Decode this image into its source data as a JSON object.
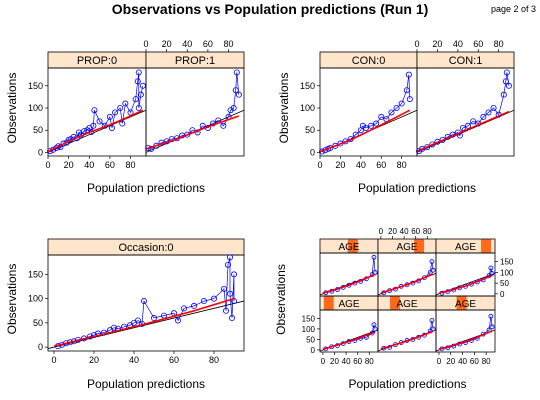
{
  "page": {
    "title": "Observations vs Population predictions (Run 1)",
    "page_label": "page 2 of 3",
    "colors": {
      "strip_fill": "#ffe5cc",
      "strip_bar": "#ff6a1a",
      "observations": "#0000ff",
      "smooth": "#ff0000",
      "identity_line": "#000000"
    }
  },
  "chart_data": [
    {
      "type": "scatter",
      "id": "prop",
      "xlabel": "Population predictions",
      "ylabel": "Observations",
      "xlim": [
        0,
        95
      ],
      "ylim": [
        -8,
        190
      ],
      "x_ticks": [
        "0",
        "20",
        "40",
        "60",
        "80"
      ],
      "y_ticks": [
        "0",
        "50",
        "100",
        "150"
      ],
      "panels": [
        {
          "label": "PROP:0",
          "points": [
            [
              2,
              3
            ],
            [
              5,
              6
            ],
            [
              8,
              10
            ],
            [
              10,
              14
            ],
            [
              12,
              12
            ],
            [
              15,
              20
            ],
            [
              18,
              22
            ],
            [
              20,
              28
            ],
            [
              22,
              30
            ],
            [
              25,
              35
            ],
            [
              28,
              32
            ],
            [
              30,
              45
            ],
            [
              32,
              40
            ],
            [
              35,
              48
            ],
            [
              38,
              50
            ],
            [
              40,
              55
            ],
            [
              42,
              46
            ],
            [
              44,
              60
            ],
            [
              45,
              95
            ],
            [
              50,
              70
            ],
            [
              55,
              60
            ],
            [
              60,
              80
            ],
            [
              62,
              55
            ],
            [
              65,
              90
            ],
            [
              70,
              100
            ],
            [
              72,
              65
            ],
            [
              75,
              110
            ],
            [
              80,
              90
            ],
            [
              85,
              120
            ],
            [
              87,
              160
            ],
            [
              88,
              180
            ],
            [
              88,
              100
            ],
            [
              90,
              130
            ],
            [
              92,
              150
            ]
          ],
          "smooth": [
            [
              0,
              2
            ],
            [
              20,
              25
            ],
            [
              40,
              45
            ],
            [
              60,
              62
            ],
            [
              80,
              82
            ],
            [
              92,
              95
            ]
          ]
        },
        {
          "label": "PROP:1",
          "points": [
            [
              2,
              10
            ],
            [
              5,
              8
            ],
            [
              10,
              15
            ],
            [
              15,
              22
            ],
            [
              20,
              25
            ],
            [
              25,
              30
            ],
            [
              30,
              32
            ],
            [
              35,
              38
            ],
            [
              40,
              40
            ],
            [
              45,
              50
            ],
            [
              50,
              45
            ],
            [
              55,
              60
            ],
            [
              60,
              55
            ],
            [
              65,
              65
            ],
            [
              70,
              72
            ],
            [
              75,
              60
            ],
            [
              80,
              80
            ],
            [
              82,
              95
            ],
            [
              85,
              100
            ],
            [
              87,
              140
            ],
            [
              88,
              180
            ],
            [
              90,
              130
            ]
          ],
          "smooth": [
            [
              0,
              8
            ],
            [
              30,
              30
            ],
            [
              60,
              58
            ],
            [
              90,
              82
            ]
          ]
        }
      ]
    },
    {
      "type": "scatter",
      "id": "con",
      "xlabel": "Population predictions",
      "ylabel": "Observations",
      "xlim": [
        0,
        95
      ],
      "ylim": [
        -8,
        190
      ],
      "x_ticks": [
        "0",
        "20",
        "40",
        "60",
        "80"
      ],
      "y_ticks": [
        "0",
        "50",
        "100",
        "150"
      ],
      "panels": [
        {
          "label": "CON:0",
          "points": [
            [
              2,
              2
            ],
            [
              5,
              5
            ],
            [
              8,
              8
            ],
            [
              10,
              10
            ],
            [
              15,
              15
            ],
            [
              20,
              20
            ],
            [
              25,
              25
            ],
            [
              30,
              30
            ],
            [
              35,
              40
            ],
            [
              40,
              50
            ],
            [
              42,
              60
            ],
            [
              45,
              55
            ],
            [
              50,
              60
            ],
            [
              55,
              65
            ],
            [
              60,
              80
            ],
            [
              65,
              75
            ],
            [
              70,
              90
            ],
            [
              75,
              100
            ],
            [
              80,
              110
            ],
            [
              85,
              140
            ],
            [
              87,
              175
            ],
            [
              88,
              120
            ]
          ],
          "smooth": [
            [
              0,
              2
            ],
            [
              30,
              28
            ],
            [
              60,
              62
            ],
            [
              88,
              95
            ]
          ]
        },
        {
          "label": "CON:1",
          "points": [
            [
              2,
              3
            ],
            [
              5,
              8
            ],
            [
              10,
              12
            ],
            [
              15,
              18
            ],
            [
              20,
              24
            ],
            [
              25,
              28
            ],
            [
              30,
              35
            ],
            [
              35,
              40
            ],
            [
              40,
              45
            ],
            [
              42,
              38
            ],
            [
              45,
              55
            ],
            [
              50,
              60
            ],
            [
              55,
              70
            ],
            [
              60,
              65
            ],
            [
              65,
              80
            ],
            [
              70,
              90
            ],
            [
              75,
              100
            ],
            [
              80,
              85
            ],
            [
              85,
              130
            ],
            [
              87,
              160
            ],
            [
              88,
              180
            ],
            [
              90,
              150
            ]
          ],
          "smooth": [
            [
              0,
              3
            ],
            [
              30,
              32
            ],
            [
              60,
              62
            ],
            [
              90,
              92
            ]
          ]
        }
      ]
    },
    {
      "type": "scatter",
      "id": "occasion",
      "xlabel": "Population predictions",
      "ylabel": "Observations",
      "xlim": [
        -3,
        95
      ],
      "ylim": [
        -8,
        190
      ],
      "x_ticks": [
        "0",
        "20",
        "40",
        "60",
        "80"
      ],
      "y_ticks": [
        "0",
        "50",
        "100",
        "150"
      ],
      "panels": [
        {
          "label": "Occasion:0",
          "points": [
            [
              2,
              2
            ],
            [
              4,
              5
            ],
            [
              6,
              8
            ],
            [
              8,
              10
            ],
            [
              10,
              12
            ],
            [
              12,
              15
            ],
            [
              15,
              18
            ],
            [
              18,
              22
            ],
            [
              20,
              25
            ],
            [
              22,
              28
            ],
            [
              25,
              30
            ],
            [
              28,
              35
            ],
            [
              30,
              40
            ],
            [
              32,
              38
            ],
            [
              35,
              42
            ],
            [
              38,
              45
            ],
            [
              40,
              50
            ],
            [
              42,
              55
            ],
            [
              44,
              48
            ],
            [
              45,
              95
            ],
            [
              50,
              60
            ],
            [
              55,
              65
            ],
            [
              60,
              70
            ],
            [
              62,
              55
            ],
            [
              65,
              80
            ],
            [
              70,
              85
            ],
            [
              75,
              95
            ],
            [
              80,
              100
            ],
            [
              85,
              120
            ],
            [
              86,
              75
            ],
            [
              87,
              170
            ],
            [
              88,
              185
            ],
            [
              88,
              110
            ],
            [
              89,
              60
            ],
            [
              90,
              150
            ],
            [
              90,
              95
            ]
          ],
          "smooth": [
            [
              0,
              2
            ],
            [
              20,
              22
            ],
            [
              45,
              47
            ],
            [
              70,
              75
            ],
            [
              90,
              100
            ]
          ]
        }
      ]
    },
    {
      "type": "scatter",
      "id": "age",
      "xlabel": "Population predictions",
      "ylabel": "Observations",
      "xlim": [
        -5,
        95
      ],
      "ylim": [
        -10,
        190
      ],
      "x_ticks": [
        "0",
        "20",
        "40",
        "60",
        "80"
      ],
      "y_ticks": [
        "0",
        "50",
        "100",
        "150"
      ],
      "panels": [
        {
          "label": "AGE",
          "level": 0.08,
          "points": [
            [
              5,
              5
            ],
            [
              15,
              15
            ],
            [
              25,
              20
            ],
            [
              35,
              30
            ],
            [
              45,
              40
            ],
            [
              55,
              45
            ],
            [
              65,
              55
            ],
            [
              75,
              60
            ],
            [
              85,
              80
            ],
            [
              88,
              120
            ],
            [
              90,
              100
            ]
          ],
          "smooth": [
            [
              0,
              3
            ],
            [
              45,
              40
            ],
            [
              90,
              85
            ]
          ]
        },
        {
          "label": "AGE",
          "level": 0.25,
          "points": [
            [
              5,
              8
            ],
            [
              15,
              12
            ],
            [
              25,
              25
            ],
            [
              35,
              35
            ],
            [
              45,
              45
            ],
            [
              55,
              50
            ],
            [
              65,
              60
            ],
            [
              75,
              70
            ],
            [
              85,
              90
            ],
            [
              88,
              140
            ],
            [
              90,
              100
            ]
          ],
          "smooth": [
            [
              0,
              5
            ],
            [
              45,
              42
            ],
            [
              90,
              88
            ]
          ]
        },
        {
          "label": "AGE",
          "level": 0.42,
          "points": [
            [
              5,
              5
            ],
            [
              15,
              10
            ],
            [
              25,
              18
            ],
            [
              35,
              28
            ],
            [
              45,
              35
            ],
            [
              55,
              45
            ],
            [
              65,
              55
            ],
            [
              75,
              75
            ],
            [
              85,
              95
            ],
            [
              88,
              160
            ],
            [
              90,
              110
            ]
          ],
          "smooth": [
            [
              0,
              4
            ],
            [
              45,
              38
            ],
            [
              90,
              90
            ]
          ]
        },
        {
          "label": "AGE",
          "level": 0.58,
          "points": [
            [
              5,
              5
            ],
            [
              15,
              12
            ],
            [
              25,
              20
            ],
            [
              35,
              30
            ],
            [
              45,
              40
            ],
            [
              55,
              50
            ],
            [
              65,
              58
            ],
            [
              75,
              70
            ],
            [
              85,
              90
            ],
            [
              88,
              170
            ],
            [
              90,
              100
            ]
          ],
          "smooth": [
            [
              0,
              4
            ],
            [
              45,
              40
            ],
            [
              90,
              90
            ]
          ]
        },
        {
          "label": "AGE",
          "level": 0.75,
          "points": [
            [
              5,
              5
            ],
            [
              15,
              15
            ],
            [
              25,
              22
            ],
            [
              35,
              35
            ],
            [
              45,
              42
            ],
            [
              55,
              50
            ],
            [
              65,
              60
            ],
            [
              75,
              75
            ],
            [
              85,
              100
            ],
            [
              88,
              150
            ],
            [
              90,
              110
            ]
          ],
          "smooth": [
            [
              0,
              4
            ],
            [
              45,
              42
            ],
            [
              90,
              92
            ]
          ]
        },
        {
          "label": "AGE",
          "level": 0.92,
          "points": [
            [
              5,
              3
            ],
            [
              15,
              10
            ],
            [
              25,
              18
            ],
            [
              35,
              28
            ],
            [
              45,
              35
            ],
            [
              55,
              45
            ],
            [
              65,
              55
            ],
            [
              75,
              65
            ],
            [
              85,
              85
            ],
            [
              88,
              120
            ],
            [
              90,
              95
            ]
          ],
          "smooth": [
            [
              0,
              3
            ],
            [
              45,
              36
            ],
            [
              90,
              85
            ]
          ]
        }
      ]
    }
  ]
}
